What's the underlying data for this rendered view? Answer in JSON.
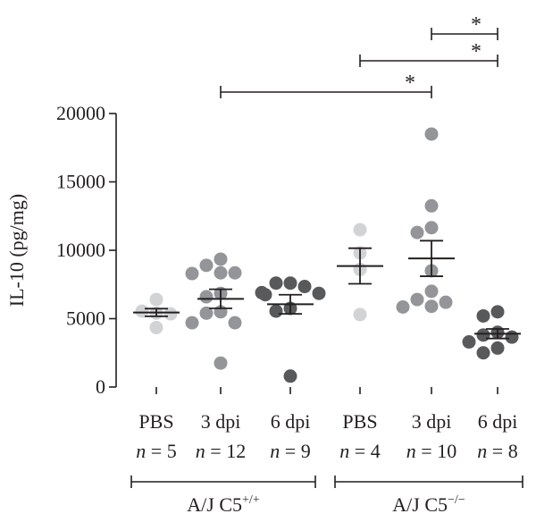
{
  "chart_data": {
    "type": "scatter",
    "ylabel": "IL-10 (pg/mg)",
    "ylim": [
      0,
      20000
    ],
    "yticks": [
      0,
      5000,
      10000,
      15000,
      20000
    ],
    "colors": {
      "PBS": "#d1d3d4",
      "3 dpi": "#939598",
      "6 dpi": "#58595b"
    },
    "groups": [
      {
        "label": "PBS",
        "n_prefix": "n",
        "n_text": " = 5",
        "strain": "A/J C5+/+",
        "mean": 5450,
        "sem": 280,
        "values": [
          6400,
          5550,
          5400,
          5350,
          4350
        ]
      },
      {
        "label": "3 dpi",
        "n_prefix": "n",
        "n_text": " = 12",
        "strain": "A/J C5+/+",
        "mean": 6450,
        "sem": 700,
        "values": [
          9350,
          8900,
          8350,
          8300,
          8350,
          6850,
          6600,
          5500,
          5400,
          4700,
          4700,
          1750
        ]
      },
      {
        "label": "6 dpi",
        "n_prefix": "n",
        "n_text": " = 9",
        "strain": "A/J C5+/+",
        "mean": 6050,
        "sem": 700,
        "values": [
          7600,
          7600,
          7350,
          6900,
          6850,
          6750,
          5750,
          5550,
          800
        ]
      },
      {
        "label": "PBS",
        "n_prefix": "n",
        "n_text": " = 4",
        "strain": "A/J C5−/−",
        "mean": 8850,
        "sem": 1300,
        "values": [
          11500,
          9800,
          8600,
          5300
        ]
      },
      {
        "label": "3 dpi",
        "n_prefix": "n",
        "n_text": " = 10",
        "strain": "A/J C5−/−",
        "mean": 9400,
        "sem": 1300,
        "values": [
          18500,
          13250,
          11650,
          11300,
          8500,
          7000,
          6400,
          6200,
          5900,
          5850
        ]
      },
      {
        "label": "6 dpi",
        "n_prefix": "n",
        "n_text": " = 8",
        "strain": "A/J C5−/−",
        "mean": 3900,
        "sem": 350,
        "values": [
          5500,
          5200,
          4000,
          3800,
          3650,
          3300,
          2850,
          2500
        ]
      }
    ],
    "strains": [
      {
        "base": "A/J C5",
        "sup": "+/+",
        "from_group": 0,
        "to_group": 2
      },
      {
        "base": "A/J C5",
        "sup": "−/−",
        "from_group": 3,
        "to_group": 5
      }
    ],
    "significance": [
      {
        "from_group": 1,
        "to_group": 4,
        "label": "*"
      },
      {
        "from_group": 3,
        "to_group": 5,
        "label": "*"
      },
      {
        "from_group": 4,
        "to_group": 5,
        "label": "*"
      }
    ]
  }
}
